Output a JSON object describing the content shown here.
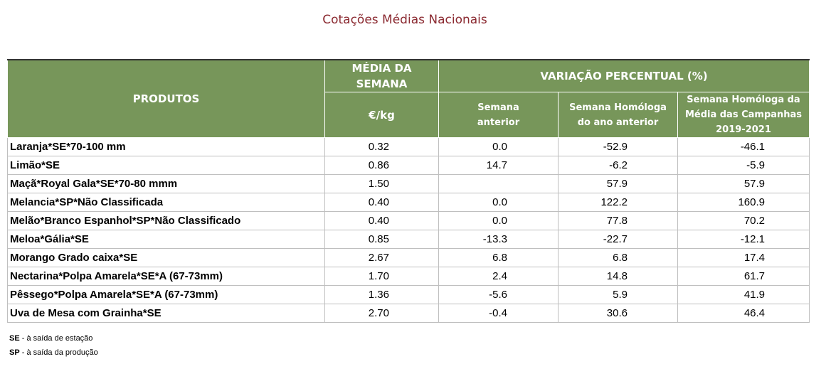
{
  "page_title": "Cotações Médias Nacionais",
  "table": {
    "headers": {
      "produtos": "PRODUTOS",
      "media_line1": "MÉDIA DA",
      "media_line2": "SEMANA",
      "unit": "€/kg",
      "variacao": "VARIAÇÃO PERCENTUAL (%)",
      "semana_anterior_1": "Semana",
      "semana_anterior_2": "anterior",
      "homologa_1": "Semana Homóloga",
      "homologa_2": "do ano anterior",
      "campanhas_1": "Semana Homóloga da",
      "campanhas_2": "Média das Campanhas",
      "campanhas_3": "2019-2021"
    },
    "rows": [
      {
        "produto": "Laranja*SE*70-100 mm",
        "media": "0.32",
        "sem_ant": "0.0",
        "homologa": "-52.9",
        "campanhas": "-46.1"
      },
      {
        "produto": "Limão*SE",
        "media": "0.86",
        "sem_ant": "14.7",
        "homologa": "-6.2",
        "campanhas": "-5.9"
      },
      {
        "produto": "Maçã*Royal Gala*SE*70-80 mmm",
        "media": "1.50",
        "sem_ant": "",
        "homologa": "57.9",
        "campanhas": "57.9"
      },
      {
        "produto": "Melancia*SP*Não Classificada",
        "media": "0.40",
        "sem_ant": "0.0",
        "homologa": "122.2",
        "campanhas": "160.9"
      },
      {
        "produto": "Melão*Branco Espanhol*SP*Não Classificado",
        "media": "0.40",
        "sem_ant": "0.0",
        "homologa": "77.8",
        "campanhas": "70.2"
      },
      {
        "produto": "Meloa*Gália*SE",
        "media": "0.85",
        "sem_ant": "-13.3",
        "homologa": "-22.7",
        "campanhas": "-12.1"
      },
      {
        "produto": "Morango Grado caixa*SE",
        "media": "2.67",
        "sem_ant": "6.8",
        "homologa": "6.8",
        "campanhas": "17.4"
      },
      {
        "produto": "Nectarina*Polpa Amarela*SE*A (67-73mm)",
        "media": "1.70",
        "sem_ant": "2.4",
        "homologa": "14.8",
        "campanhas": "61.7"
      },
      {
        "produto": "Pêssego*Polpa Amarela*SE*A (67-73mm)",
        "media": "1.36",
        "sem_ant": "-5.6",
        "homologa": "5.9",
        "campanhas": "41.9"
      },
      {
        "produto": "Uva de Mesa com Grainha*SE",
        "media": "2.70",
        "sem_ant": "-0.4",
        "homologa": "30.6",
        "campanhas": "46.4"
      }
    ]
  },
  "notes": [
    {
      "abbr": "SE",
      "text": " - à saída de estação"
    },
    {
      "abbr": "SP",
      "text": " - à saída da produção"
    }
  ],
  "colors": {
    "title": "#8b2a31",
    "header_bg": "#77965a",
    "header_text": "#ffffff"
  }
}
